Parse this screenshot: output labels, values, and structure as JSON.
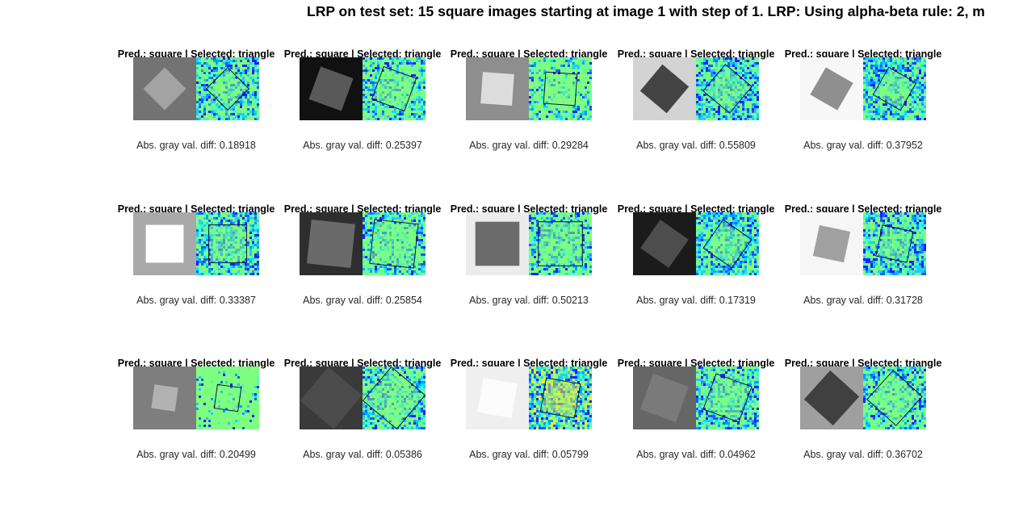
{
  "figure": {
    "title": "LRP on test set: 15 square images starting at image 1 with step of 1. LRP: Using alpha-beta rule: 2, m"
  },
  "panels": [
    {
      "title": "Pred.: square | Selected: triangle",
      "caption": "Abs. gray val. diff: 0.18918",
      "bg": "#737373",
      "fg": "#a3a3a3",
      "rot": 45,
      "size": 0.48,
      "heat": "#7fff80",
      "noise": 0.7
    },
    {
      "title": "Pred.: square | Selected: triangle",
      "caption": "Abs. gray val. diff: 0.25397",
      "bg": "#111111",
      "fg": "#595959",
      "rot": 20,
      "size": 0.55,
      "heat": "#7fff80",
      "noise": 0.55
    },
    {
      "title": "Pred.: square | Selected: triangle",
      "caption": "Abs. gray val. diff: 0.29284",
      "bg": "#8e8e8e",
      "fg": "#dcdcdc",
      "rot": 4,
      "size": 0.5,
      "heat": "#7fff80",
      "noise": 0.35
    },
    {
      "title": "Pred.: square | Selected: triangle",
      "caption": "Abs. gray val. diff: 0.55809",
      "bg": "#d3d3d3",
      "fg": "#444444",
      "rot": 40,
      "size": 0.55,
      "heat": "#7fff80",
      "noise": 0.75
    },
    {
      "title": "Pred.: square | Selected: triangle",
      "caption": "Abs. gray val. diff: 0.37952",
      "bg": "#f7f7f7",
      "fg": "#8f8f8f",
      "rot": 30,
      "size": 0.5,
      "heat": "#7fff80",
      "noise": 0.75
    },
    {
      "title": "Pred.: square | Selected: triangle",
      "caption": "Abs. gray val. diff: 0.33387",
      "bg": "#a9a9a9",
      "fg": "#fefefe",
      "rot": 0,
      "size": 0.6,
      "heat": "#7fff80",
      "noise": 0.7
    },
    {
      "title": "Pred.: square | Selected: triangle",
      "caption": "Abs. gray val. diff: 0.25854",
      "bg": "#2e2e2e",
      "fg": "#6a6a6a",
      "rot": 6,
      "size": 0.7,
      "heat": "#7fff80",
      "noise": 0.6
    },
    {
      "title": "Pred.: square | Selected: triangle",
      "caption": "Abs. gray val. diff: 0.50213",
      "bg": "#ececec",
      "fg": "#6b6b6b",
      "rot": 0,
      "size": 0.7,
      "heat": "#7fff80",
      "noise": 0.6
    },
    {
      "title": "Pred.: square | Selected: triangle",
      "caption": "Abs. gray val. diff: 0.17319",
      "bg": "#1b1b1b",
      "fg": "#4d4d4d",
      "rot": 35,
      "size": 0.55,
      "heat": "#7fff80",
      "noise": 0.75
    },
    {
      "title": "Pred.: square | Selected: triangle",
      "caption": "Abs. gray val. diff: 0.31728",
      "bg": "#f6f6f6",
      "fg": "#a0a0a0",
      "rot": 12,
      "size": 0.5,
      "heat": "#7fff80",
      "noise": 0.75
    },
    {
      "title": "Pred.: square | Selected: triangle",
      "caption": "Abs. gray val. diff: 0.20499",
      "bg": "#7e7e7e",
      "fg": "#b2b2b2",
      "rot": 8,
      "size": 0.38,
      "heat": "#7fff80",
      "noise": 0.15
    },
    {
      "title": "Pred.: square | Selected: triangle",
      "caption": "Abs. gray val. diff: 0.05386",
      "bg": "#3a3a3a",
      "fg": "#4c4c4c",
      "rot": 40,
      "size": 0.7,
      "heat": "#7fff80",
      "noise": 0.65
    },
    {
      "title": "Pred.: square | Selected: triangle",
      "caption": "Abs. gray val. diff: 0.05799",
      "bg": "#efefef",
      "fg": "#fcfcfc",
      "rot": 10,
      "size": 0.55,
      "heat": "#d9f040",
      "noise": 0.75
    },
    {
      "title": "Pred.: square | Selected: triangle",
      "caption": "Abs. gray val. diff: 0.04962",
      "bg": "#666666",
      "fg": "#7a7a7a",
      "rot": 20,
      "size": 0.6,
      "heat": "#7fff80",
      "noise": 0.65
    },
    {
      "title": "Pred.: square | Selected: triangle",
      "caption": "Abs. gray val. diff: 0.36702",
      "bg": "#9f9f9f",
      "fg": "#404040",
      "rot": 42,
      "size": 0.62,
      "heat": "#7fff80",
      "noise": 0.65
    }
  ]
}
